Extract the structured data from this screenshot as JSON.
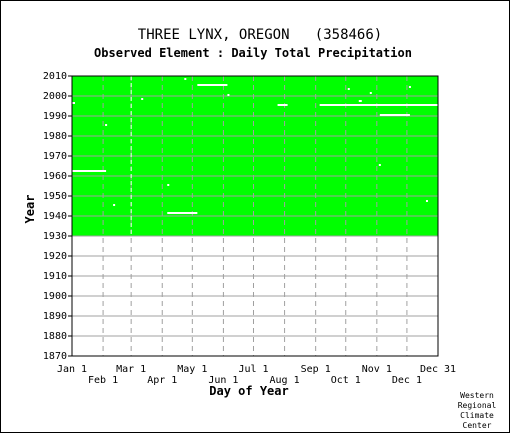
{
  "chart_data": {
    "type": "heatmap",
    "title": "THREE LYNX, OREGON   (358466)",
    "subtitle": "Observed Element : Daily Total Precipitation",
    "xlabel": "Day of Year",
    "ylabel": "Year",
    "xlim": [
      1,
      366
    ],
    "ylim": [
      1870,
      2010
    ],
    "y_ticks": [
      1870,
      1880,
      1890,
      1900,
      1910,
      1920,
      1930,
      1940,
      1950,
      1960,
      1970,
      1980,
      1990,
      2000,
      2010
    ],
    "x_ticks_top": [
      {
        "label": "Jan 1",
        "day": 1
      },
      {
        "label": "Mar 1",
        "day": 60
      },
      {
        "label": "May 1",
        "day": 121
      },
      {
        "label": "Jul 1",
        "day": 182
      },
      {
        "label": "Sep 1",
        "day": 244
      },
      {
        "label": "Nov 1",
        "day": 305
      },
      {
        "label": "Dec 31",
        "day": 366
      }
    ],
    "x_ticks_bottom": [
      {
        "label": "Feb 1",
        "day": 32
      },
      {
        "label": "Apr 1",
        "day": 91
      },
      {
        "label": "Jun 1",
        "day": 152
      },
      {
        "label": "Aug 1",
        "day": 213
      },
      {
        "label": "Oct 1",
        "day": 274
      },
      {
        "label": "Dec 1",
        "day": 335
      }
    ],
    "grid": true,
    "data_color": "#00ff00",
    "missing_color": "#ffffff",
    "observed_range": {
      "year_start": 1930,
      "year_end": 2010,
      "day_start": 1,
      "day_end": 366
    },
    "missing_segments": [
      {
        "year": 1962.5,
        "day_start": 1,
        "day_end": 35
      },
      {
        "year": 1941.5,
        "day_start": 96,
        "day_end": 126
      },
      {
        "year": 2005.5,
        "day_start": 126,
        "day_end": 156
      },
      {
        "year": 1995.5,
        "day_start": 206,
        "day_end": 216
      },
      {
        "year": 1995.5,
        "day_start": 248,
        "day_end": 366
      },
      {
        "year": 1990.5,
        "day_start": 308,
        "day_end": 338
      },
      {
        "year": 1996.5,
        "day_start": 1,
        "day_end": 4
      },
      {
        "year": 1985.5,
        "day_start": 34,
        "day_end": 36
      },
      {
        "year": 1945.5,
        "day_start": 42,
        "day_end": 44
      },
      {
        "year": 1998.5,
        "day_start": 70,
        "day_end": 72
      },
      {
        "year": 1955.5,
        "day_start": 96,
        "day_end": 98
      },
      {
        "year": 2008.5,
        "day_start": 113,
        "day_end": 115
      },
      {
        "year": 2000.5,
        "day_start": 156,
        "day_end": 158
      },
      {
        "year": 2003.5,
        "day_start": 276,
        "day_end": 278
      },
      {
        "year": 1997.5,
        "day_start": 287,
        "day_end": 290
      },
      {
        "year": 2001.5,
        "day_start": 298,
        "day_end": 300
      },
      {
        "year": 1965.5,
        "day_start": 307,
        "day_end": 309
      },
      {
        "year": 2004.5,
        "day_start": 337,
        "day_end": 339
      },
      {
        "year": 1947.5,
        "day_start": 354,
        "day_end": 356
      }
    ],
    "missing_columns": [
      {
        "day": 60,
        "year_start": 1930,
        "year_end": 2010
      }
    ],
    "credit": [
      "Western",
      "Regional",
      "Climate",
      "Center"
    ]
  }
}
